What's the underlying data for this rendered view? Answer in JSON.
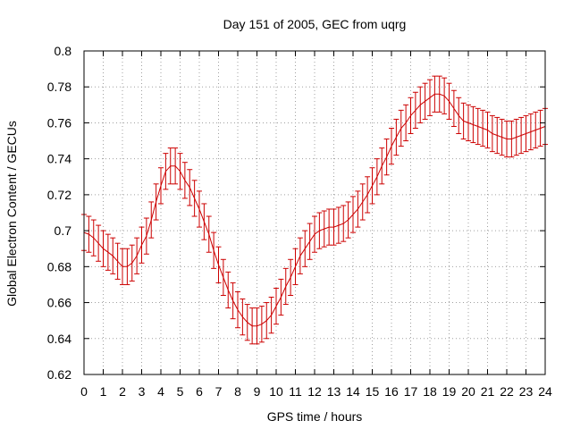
{
  "chart_data": {
    "type": "line",
    "title": "Day 151 of 2005, GEC from uqrg",
    "xlabel": "GPS time / hours",
    "ylabel": "Global Electron Content / GECUs",
    "xlim": [
      0,
      24
    ],
    "ylim": [
      0.62,
      0.8
    ],
    "xticks": [
      0,
      1,
      2,
      3,
      4,
      5,
      6,
      7,
      8,
      9,
      10,
      11,
      12,
      13,
      14,
      15,
      16,
      17,
      18,
      19,
      20,
      21,
      22,
      23,
      24
    ],
    "yticks": [
      0.62,
      0.64,
      0.66,
      0.68,
      0.7,
      0.72,
      0.74,
      0.76,
      0.78,
      0.8
    ],
    "ytick_labels": [
      "0.62",
      "0.64",
      "0.66",
      "0.68",
      "0.7",
      "0.72",
      "0.74",
      "0.76",
      "0.78",
      "0.8"
    ],
    "grid": true,
    "line_color": "#cc0000",
    "error": 0.01,
    "x": [
      0.0,
      0.25,
      0.5,
      0.75,
      1.0,
      1.25,
      1.5,
      1.75,
      2.0,
      2.25,
      2.5,
      2.75,
      3.0,
      3.25,
      3.5,
      3.75,
      4.0,
      4.25,
      4.5,
      4.75,
      5.0,
      5.25,
      5.5,
      5.75,
      6.0,
      6.25,
      6.5,
      6.75,
      7.0,
      7.25,
      7.5,
      7.75,
      8.0,
      8.25,
      8.5,
      8.75,
      9.0,
      9.25,
      9.5,
      9.75,
      10.0,
      10.25,
      10.5,
      10.75,
      11.0,
      11.25,
      11.5,
      11.75,
      12.0,
      12.25,
      12.5,
      12.75,
      13.0,
      13.25,
      13.5,
      13.75,
      14.0,
      14.25,
      14.5,
      14.75,
      15.0,
      15.25,
      15.5,
      15.75,
      16.0,
      16.25,
      16.5,
      16.75,
      17.0,
      17.25,
      17.5,
      17.75,
      18.0,
      18.25,
      18.5,
      18.75,
      19.0,
      19.25,
      19.5,
      19.75,
      20.0,
      20.25,
      20.5,
      20.75,
      21.0,
      21.25,
      21.5,
      21.75,
      22.0,
      22.25,
      22.5,
      22.75,
      23.0,
      23.25,
      23.5,
      23.75,
      24.0
    ],
    "y": [
      0.699,
      0.698,
      0.696,
      0.693,
      0.69,
      0.688,
      0.686,
      0.683,
      0.68,
      0.68,
      0.682,
      0.686,
      0.692,
      0.697,
      0.706,
      0.716,
      0.725,
      0.733,
      0.736,
      0.736,
      0.733,
      0.728,
      0.724,
      0.718,
      0.712,
      0.705,
      0.698,
      0.689,
      0.681,
      0.674,
      0.667,
      0.661,
      0.656,
      0.652,
      0.649,
      0.647,
      0.647,
      0.648,
      0.65,
      0.653,
      0.658,
      0.663,
      0.669,
      0.674,
      0.68,
      0.686,
      0.69,
      0.694,
      0.698,
      0.7,
      0.701,
      0.702,
      0.702,
      0.703,
      0.704,
      0.706,
      0.709,
      0.712,
      0.716,
      0.72,
      0.725,
      0.73,
      0.736,
      0.741,
      0.747,
      0.752,
      0.757,
      0.76,
      0.764,
      0.767,
      0.77,
      0.772,
      0.774,
      0.776,
      0.776,
      0.775,
      0.772,
      0.768,
      0.764,
      0.761,
      0.76,
      0.759,
      0.758,
      0.757,
      0.756,
      0.754,
      0.753,
      0.752,
      0.751,
      0.751,
      0.752,
      0.753,
      0.754,
      0.755,
      0.756,
      0.757,
      0.758
    ]
  }
}
